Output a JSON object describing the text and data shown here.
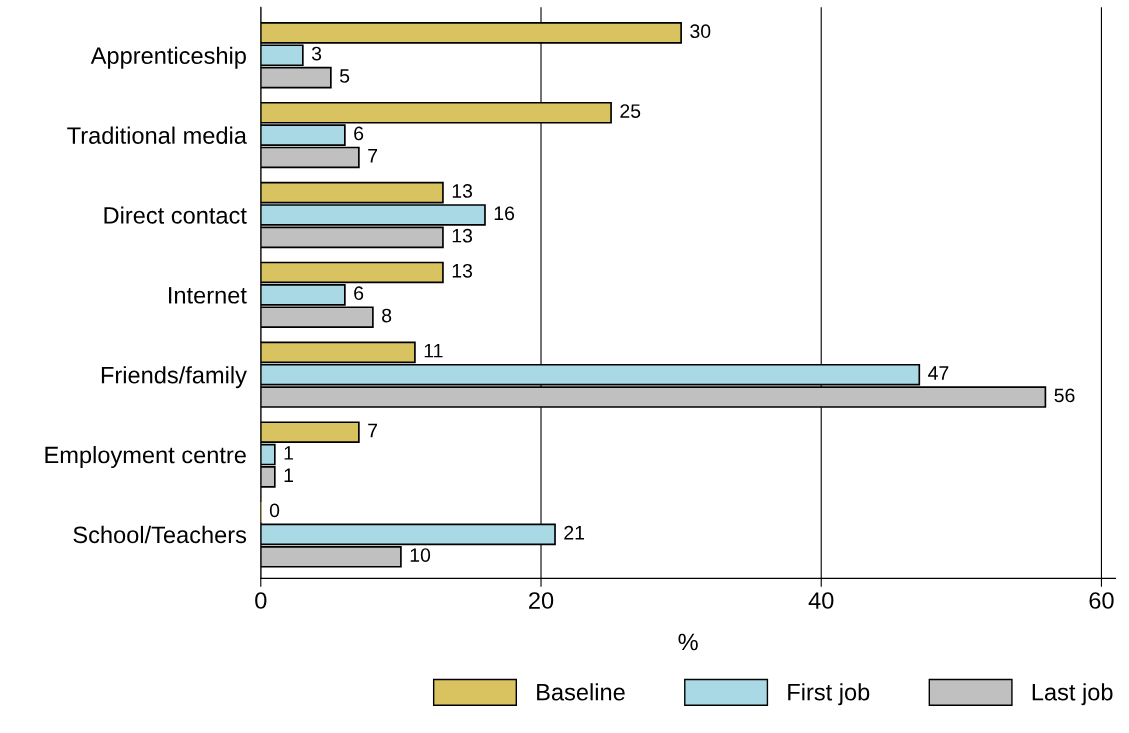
{
  "chart_data": {
    "type": "bar",
    "orientation": "horizontal",
    "xlabel": "%",
    "categories": [
      "Apprenticeship",
      "Traditional media",
      "Direct contact",
      "Internet",
      "Friends/family",
      "Employment centre",
      "School/Teachers"
    ],
    "series": [
      {
        "name": "Baseline",
        "color": "#d9c361",
        "values": [
          30,
          25,
          13,
          13,
          11,
          7,
          0
        ]
      },
      {
        "name": "First job",
        "color": "#a9d9e5",
        "values": [
          3,
          6,
          16,
          6,
          47,
          1,
          21
        ]
      },
      {
        "name": "Last job",
        "color": "#c0c0c0",
        "values": [
          5,
          7,
          13,
          8,
          56,
          1,
          10
        ]
      }
    ],
    "xlim": [
      0,
      61
    ],
    "xticks": [
      0,
      20,
      40,
      60
    ],
    "grid": "x",
    "legend": "bottom",
    "data_labels": true
  }
}
